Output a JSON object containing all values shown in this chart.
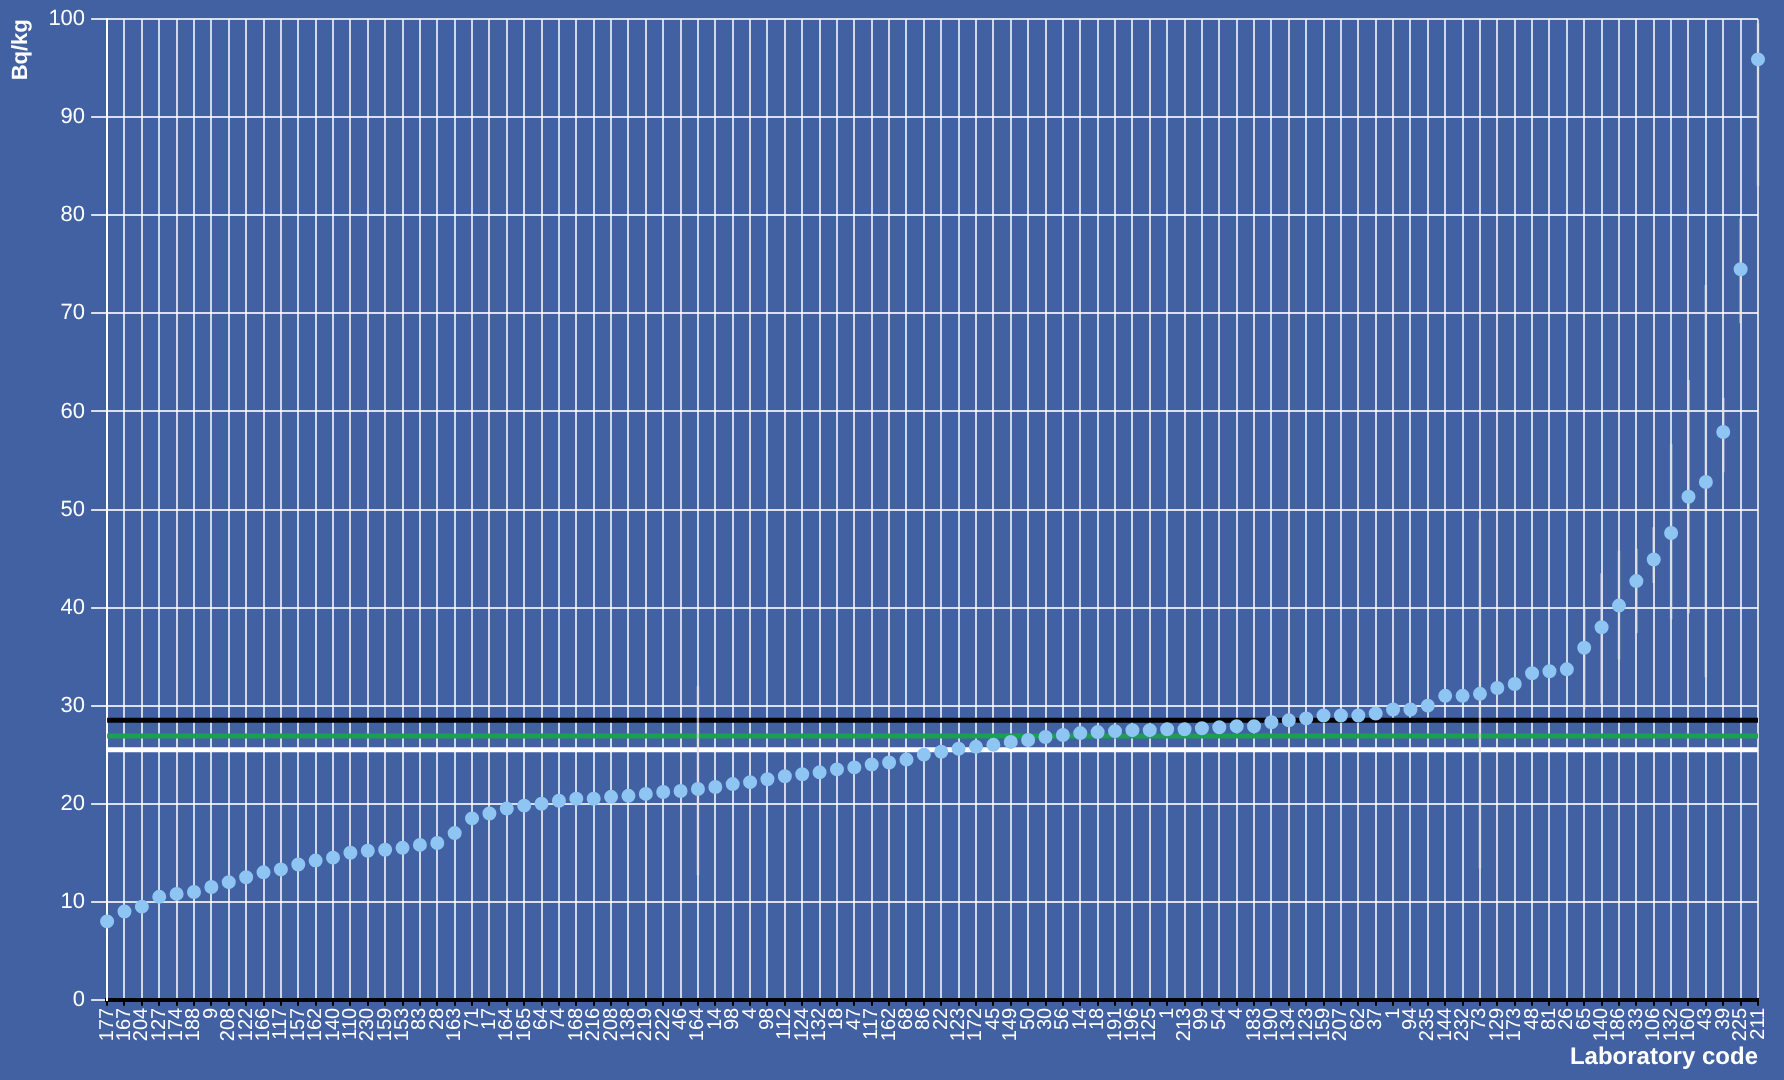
{
  "chart_data": {
    "type": "scatter",
    "xlabel": "Laboratory code",
    "ylabel": "Bq/kg",
    "categories": [
      "177",
      "167",
      "204",
      "127",
      "174",
      "188",
      "9",
      "208",
      "122",
      "166",
      "117",
      "157",
      "162",
      "140",
      "110",
      "230",
      "159",
      "153",
      "83",
      "28",
      "163",
      "71",
      "17",
      "164",
      "165",
      "64",
      "74",
      "168",
      "216",
      "208",
      "138",
      "219",
      "222",
      "46",
      "164",
      "14",
      "98",
      "4",
      "98",
      "112",
      "124",
      "132",
      "18",
      "47",
      "117",
      "162",
      "68",
      "86",
      "22",
      "123",
      "172",
      "45",
      "149",
      "50",
      "30",
      "56",
      "14",
      "18",
      "191",
      "196",
      "125",
      "1",
      "213",
      "99",
      "54",
      "4",
      "183",
      "190",
      "134",
      "123",
      "159",
      "207",
      "62",
      "37",
      "1",
      "94",
      "235",
      "144",
      "232",
      "73",
      "129",
      "173",
      "48",
      "81",
      "26",
      "65",
      "140",
      "186",
      "33",
      "106",
      "132",
      "160",
      "43",
      "39",
      "225",
      "211"
    ],
    "series": [
      {
        "color": "#8ec5f2",
        "values": [
          8,
          9,
          9.5,
          10.5,
          10.8,
          11,
          11.5,
          12,
          12.5,
          13,
          13.3,
          13.8,
          14.2,
          14.5,
          15,
          15.2,
          15.3,
          15.5,
          15.8,
          16,
          17,
          18.5,
          19,
          19.5,
          19.8,
          20,
          20.3,
          20.5,
          20.5,
          20.7,
          20.8,
          21,
          21.2,
          21.3,
          21.5,
          21.7,
          22,
          22.2,
          22.5,
          22.8,
          23,
          23.2,
          23.5,
          23.7,
          24,
          24.2,
          24.5,
          25,
          25.3,
          25.6,
          25.8,
          26,
          26.3,
          26.5,
          26.8,
          27,
          27.2,
          27.3,
          27.4,
          27.5,
          27.5,
          27.6,
          27.6,
          27.7,
          27.8,
          27.9,
          27.9,
          28.3,
          28.5,
          28.7,
          29,
          29,
          29,
          29.2,
          29.6,
          29.6,
          30,
          31,
          31,
          31.2,
          31.8,
          32.2,
          33.3,
          33.5,
          33.7,
          35.9,
          38,
          40.2,
          42.7,
          44.9,
          47.6,
          51.3,
          52.8,
          57.9,
          74.5,
          95.9
        ],
        "errors": [
          null,
          null,
          null,
          null,
          null,
          null,
          null,
          null,
          null,
          null,
          null,
          null,
          null,
          null,
          null,
          null,
          null,
          null,
          null,
          null,
          null,
          null,
          null,
          null,
          null,
          null,
          null,
          null,
          null,
          null,
          null,
          null,
          null,
          null,
          [
            12.7,
            32
          ],
          null,
          null,
          null,
          null,
          null,
          null,
          null,
          null,
          null,
          null,
          null,
          null,
          null,
          null,
          null,
          null,
          null,
          null,
          null,
          null,
          null,
          null,
          null,
          null,
          null,
          null,
          null,
          null,
          null,
          null,
          null,
          null,
          null,
          null,
          null,
          null,
          null,
          null,
          null,
          null,
          null,
          null,
          null,
          null,
          [
            13.4,
            49
          ],
          null,
          null,
          null,
          null,
          null,
          [
            29.6,
            40
          ],
          [
            30.2,
            43.5
          ],
          [
            34.7,
            45.8
          ],
          [
            37.4,
            46
          ],
          [
            42.5,
            48.2
          ],
          [
            38.8,
            56.7
          ],
          [
            39.4,
            63.2
          ],
          [
            32.9,
            72.9
          ],
          [
            53.8,
            61.4
          ],
          [
            69,
            79.7
          ],
          [
            83,
            99.6
          ]
        ]
      }
    ],
    "ylim": [
      0,
      100
    ],
    "yticks": [
      0,
      10,
      20,
      30,
      40,
      50,
      60,
      70,
      80,
      90,
      100
    ],
    "grid": true,
    "legend": false,
    "marker": "circle",
    "ref_lines": [
      {
        "axis": "y",
        "value": 28.5,
        "color": "#000000"
      },
      {
        "axis": "y",
        "value": 26.9,
        "color": "#1aa050"
      },
      {
        "axis": "y",
        "value": 25.5,
        "color": "#ffffff"
      }
    ]
  }
}
